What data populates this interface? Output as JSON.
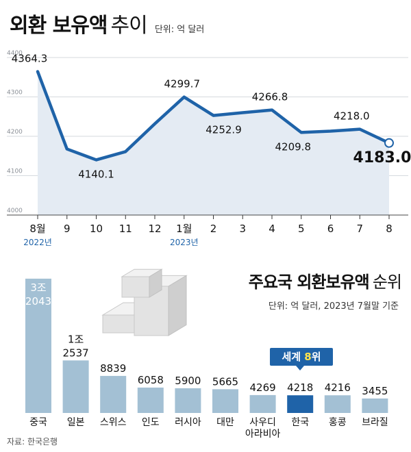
{
  "header": {
    "title_bold": "외환 보유액",
    "title_light": "추이",
    "unit": "단위: 억 달러"
  },
  "ranking": {
    "title_bold": "주요국 외환보유액",
    "title_light": "순위",
    "unit": "단위: 억 달러, 2023년 7월말 기준",
    "badge_prefix": "세계 ",
    "badge_rank": "8",
    "badge_suffix": "위"
  },
  "source": "자료: 한국은행",
  "colors": {
    "line": "#1f63a8",
    "area": "#e4ebf3",
    "bar": "#a3c0d4",
    "bar_highlight": "#1f63a8",
    "badge": "#1f63a8",
    "badge_rank_text": "#ffe44d"
  },
  "chart_data": [
    {
      "type": "line",
      "title": "외환 보유액 추이",
      "unit": "단위: 억 달러",
      "x": [
        "8월",
        "9",
        "10",
        "11",
        "12",
        "1월",
        "2",
        "3",
        "4",
        "5",
        "6",
        "7",
        "8"
      ],
      "year_labels": [
        {
          "index": 0,
          "label": "2022년"
        },
        {
          "index": 5,
          "label": "2023년"
        }
      ],
      "values": [
        4364.3,
        4167.7,
        4140.1,
        4161.0,
        4231.7,
        4299.7,
        4252.9,
        4260.0,
        4266.8,
        4209.8,
        4213.0,
        4218.0,
        4183.0
      ],
      "value_labels": [
        {
          "index": 0,
          "label": "4364.3"
        },
        {
          "index": 2,
          "label": "4140.1"
        },
        {
          "index": 5,
          "label": "4299.7"
        },
        {
          "index": 6,
          "label": "4252.9"
        },
        {
          "index": 8,
          "label": "4266.8"
        },
        {
          "index": 9,
          "label": "4209.8"
        },
        {
          "index": 11,
          "label": "4218.0"
        },
        {
          "index": 12,
          "label": "4183.0"
        }
      ],
      "yticks": [
        "4000",
        "4100",
        "4200",
        "4300",
        "4400"
      ],
      "ylim": [
        4000,
        4400
      ],
      "grid": true
    },
    {
      "type": "bar",
      "title": "주요국 외환보유액 순위",
      "unit": "단위: 억 달러, 2023년 7월말 기준",
      "categories": [
        [
          "중국"
        ],
        [
          "일본"
        ],
        [
          "스위스"
        ],
        [
          "인도"
        ],
        [
          "러시아"
        ],
        [
          "대만"
        ],
        [
          "사우디",
          "아라비아"
        ],
        [
          "한국"
        ],
        [
          "홍콩"
        ],
        [
          "브라질"
        ]
      ],
      "values": [
        32043,
        12537,
        8839,
        6058,
        5900,
        5665,
        4269,
        4218,
        4216,
        3455
      ],
      "value_labels": [
        [
          "3조",
          "2043"
        ],
        [
          "1조",
          "2537"
        ],
        [
          "8839"
        ],
        [
          "6058"
        ],
        [
          "5900"
        ],
        [
          "5665"
        ],
        [
          "4269"
        ],
        [
          "4218"
        ],
        [
          "4216"
        ],
        [
          "3455"
        ]
      ],
      "highlight_index": 7
    }
  ]
}
